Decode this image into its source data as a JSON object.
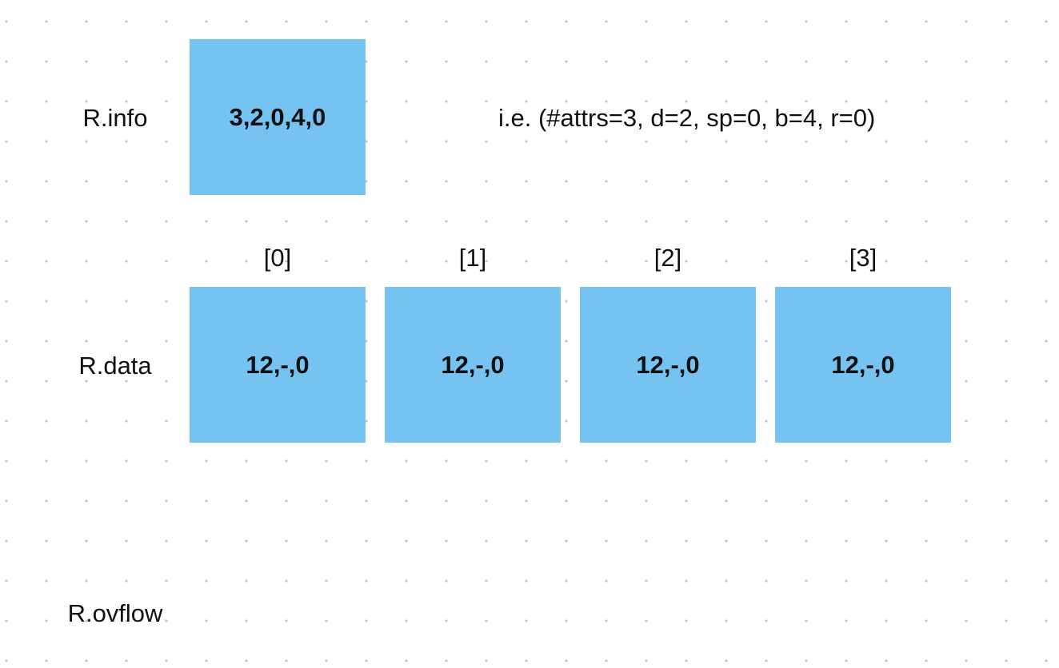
{
  "info": {
    "label": "R.info",
    "box": "3,2,0,4,0",
    "note": "i.e. (#attrs=3, d=2, sp=0, b=4, r=0)"
  },
  "data": {
    "label": "R.data",
    "cells": [
      {
        "index": "[0]",
        "value": "12,-,0"
      },
      {
        "index": "[1]",
        "value": "12,-,0"
      },
      {
        "index": "[2]",
        "value": "12,-,0"
      },
      {
        "index": "[3]",
        "value": "12,-,0"
      }
    ]
  },
  "ovflow": {
    "label": "R.ovflow"
  }
}
